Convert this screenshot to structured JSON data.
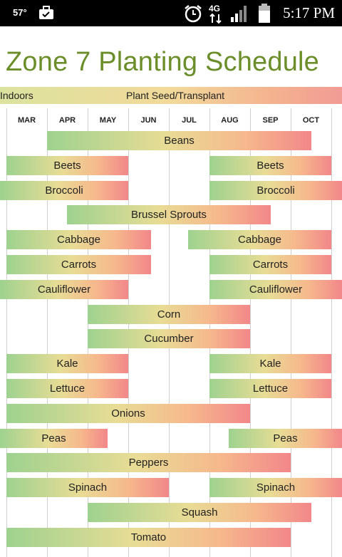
{
  "status_bar": {
    "temperature": "57°",
    "network": "4G",
    "time": "5:17 PM"
  },
  "title": "Zone 7 Planting Schedule",
  "legend": {
    "left": "Indoors",
    "right": "Plant Seed/Transplant"
  },
  "months": [
    "MAR",
    "APR",
    "MAY",
    "JUN",
    "JUL",
    "AUG",
    "SEP",
    "OCT"
  ],
  "crops": [
    {
      "name": "Beans",
      "row": 0
    },
    {
      "name": "Beets",
      "row": 1
    },
    {
      "name": "Beets",
      "row": 1
    },
    {
      "name": "Broccoli",
      "row": 2
    },
    {
      "name": "Broccoli",
      "row": 2
    },
    {
      "name": "Brussel Sprouts",
      "row": 3
    },
    {
      "name": "Cabbage",
      "row": 4
    },
    {
      "name": "Cabbage",
      "row": 4
    },
    {
      "name": "Carrots",
      "row": 5
    },
    {
      "name": "Carrots",
      "row": 5
    },
    {
      "name": "Cauliflower",
      "row": 6
    },
    {
      "name": "Cauliflower",
      "row": 6
    },
    {
      "name": "Corn",
      "row": 7
    },
    {
      "name": "Cucumber",
      "row": 8
    },
    {
      "name": "Kale",
      "row": 9
    },
    {
      "name": "Kale",
      "row": 9
    },
    {
      "name": "Lettuce",
      "row": 10
    },
    {
      "name": "Lettuce",
      "row": 10
    },
    {
      "name": "Onions",
      "row": 11
    },
    {
      "name": "Peas",
      "row": 12
    },
    {
      "name": "Peas",
      "row": 12
    },
    {
      "name": "Peppers",
      "row": 13
    },
    {
      "name": "Spinach",
      "row": 14
    },
    {
      "name": "Spinach",
      "row": 14
    },
    {
      "name": "Squash",
      "row": 15
    },
    {
      "name": "Tomato",
      "row": 16
    }
  ]
}
